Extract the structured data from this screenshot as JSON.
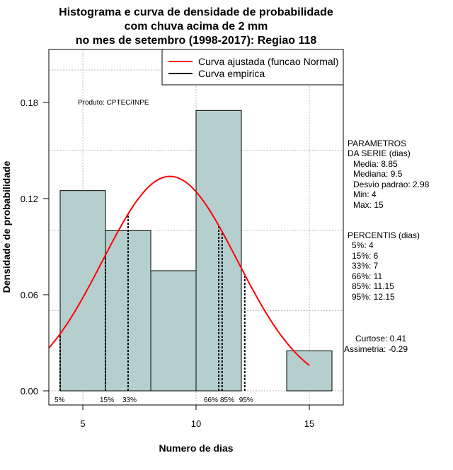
{
  "chart_data": {
    "type": "bar",
    "title": [
      "Histograma e curva de densidade de probabilidade",
      "com chuva acima de 2 mm",
      "no mes de setembro (1998-2017): Regiao 118"
    ],
    "xlabel": "Numero de dias",
    "ylabel": "Densidade de probabilidade",
    "xlim": [
      3.5,
      16.5
    ],
    "ylim": [
      0,
      0.21
    ],
    "x_ticks": [
      5,
      10,
      15
    ],
    "y_ticks": [
      0.0,
      0.06,
      0.12,
      0.18
    ],
    "y_tick_labels": [
      "0.00",
      "0.06",
      "0.12",
      "0.18"
    ],
    "grid": true,
    "bins": [
      {
        "from": 4,
        "to": 6,
        "density": 0.125
      },
      {
        "from": 6,
        "to": 8,
        "density": 0.1
      },
      {
        "from": 8,
        "to": 10,
        "density": 0.075
      },
      {
        "from": 10,
        "to": 12,
        "density": 0.175
      },
      {
        "from": 12,
        "to": 14,
        "density": 0
      },
      {
        "from": 14,
        "to": 16,
        "density": 0.025
      }
    ],
    "normal_curve": {
      "mean": 8.85,
      "sd": 2.98,
      "x_from": 3.5,
      "x_to": 15,
      "color": "#ff0000"
    },
    "bar_color": "#b5cfcf",
    "percentile_lines": [
      {
        "label": "5%",
        "x": 4
      },
      {
        "label": "15%",
        "x": 6
      },
      {
        "label": "33%",
        "x": 7
      },
      {
        "label": "66%",
        "x": 11
      },
      {
        "label": "85%",
        "x": 11.15
      },
      {
        "label": "95%",
        "x": 12.15
      }
    ],
    "legend": {
      "position": "top-right",
      "items": [
        {
          "label": "Curva ajustada (funcao Normal)",
          "color": "#ff0000"
        },
        {
          "label": "Curva empirica",
          "color": "#000000"
        }
      ]
    },
    "annotation": "Produto: CPTEC/INPE"
  },
  "side_panel": {
    "parametros_title": [
      "PARAMETROS",
      "DA SERIE (dias)"
    ],
    "parametros": [
      "Media: 8.85",
      "Mediana: 9.5",
      "Desvio padrao: 2.98",
      "Min: 4",
      "Max: 15"
    ],
    "percentis_title": "PERCENTIS (dias)",
    "percentis": [
      "5%: 4",
      "15%: 6",
      "33%: 7",
      "66%: 11",
      "85%: 11.15",
      "95%: 12.15"
    ],
    "curtose": "Curtose: 0.41",
    "assimetria": "Assimetria: -0.29"
  }
}
